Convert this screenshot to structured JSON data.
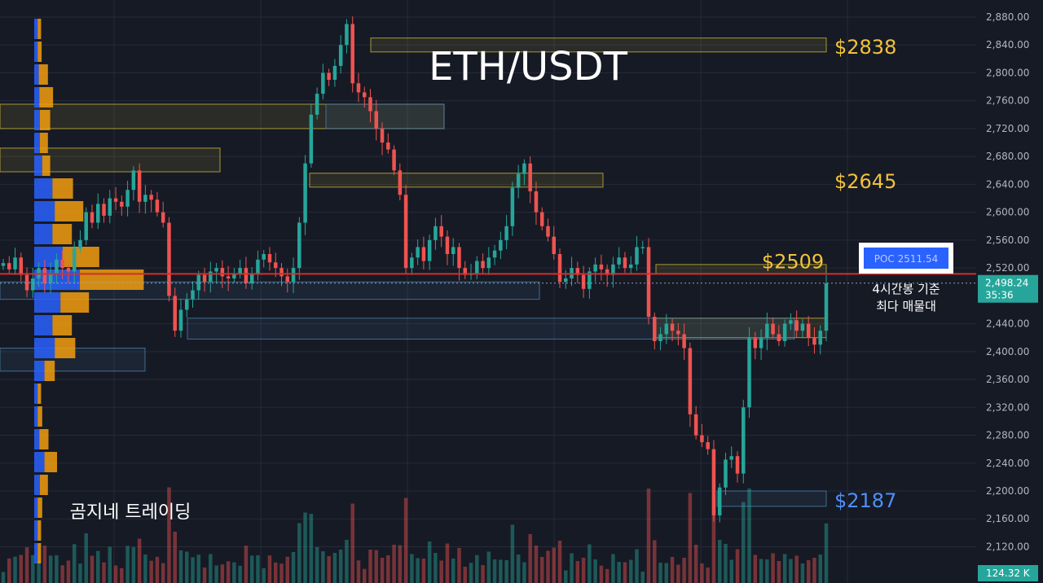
{
  "chart_data": {
    "type": "candlestick",
    "title": "ETH/USDT",
    "watermark": "곰지네 트레이딩",
    "ylim": [
      2090,
      2895
    ],
    "y_ticks": [
      "2,880.00",
      "2,840.00",
      "2,800.00",
      "2,760.00",
      "2,720.00",
      "2,680.00",
      "2,640.00",
      "2,600.00",
      "2,560.00",
      "2,520.00",
      "2,440.00",
      "2,400.00",
      "2,360.00",
      "2,320.00",
      "2,280.00",
      "2,240.00",
      "2,200.00",
      "2,160.00",
      "2,120.00"
    ],
    "y_tick_values": [
      2880,
      2840,
      2800,
      2760,
      2720,
      2680,
      2640,
      2600,
      2560,
      2520,
      2440,
      2400,
      2360,
      2320,
      2280,
      2240,
      2200,
      2160,
      2120
    ],
    "last_price": "2,498.24",
    "countdown": "35:36",
    "volume_label": "124.32 K",
    "level_labels": [
      {
        "text": "$2838",
        "value": 2838,
        "color": "#f2c23a"
      },
      {
        "text": "$2645",
        "value": 2645,
        "color": "#f2c23a"
      },
      {
        "text": "$2509",
        "value": 2509,
        "color": "#f2c23a"
      },
      {
        "text": "$2187",
        "value": 2187,
        "color": "#4f8ff7"
      }
    ],
    "poc": {
      "label": "POC  2511.54",
      "value": 2511.54,
      "note_line1": "4시간봉 기준",
      "note_line2": "최다 매물대"
    },
    "colors": {
      "up": "#26a69a",
      "down": "#ef5350",
      "background": "#161a25",
      "grid": "#262b38",
      "poc": "#d32f2f",
      "profile_buy": "#2962ff",
      "profile_sell": "#f29d0f",
      "zone_yellow": "#c9b437",
      "zone_blue": "#4a7fa8"
    },
    "candles_close": [
      2527,
      2518,
      2535,
      2510,
      2488,
      2505,
      2520,
      2498,
      2512,
      2532,
      2520,
      2515,
      2548,
      2560,
      2600,
      2585,
      2612,
      2595,
      2620,
      2615,
      2608,
      2632,
      2660,
      2615,
      2625,
      2618,
      2600,
      2585,
      2480,
      2430,
      2460,
      2475,
      2488,
      2510,
      2500,
      2515,
      2520,
      2508,
      2505,
      2512,
      2520,
      2498,
      2512,
      2532,
      2540,
      2528,
      2520,
      2508,
      2500,
      2520,
      2585,
      2670,
      2740,
      2770,
      2800,
      2790,
      2810,
      2840,
      2870,
      2785,
      2772,
      2765,
      2745,
      2720,
      2700,
      2690,
      2660,
      2625,
      2520,
      2535,
      2550,
      2530,
      2560,
      2580,
      2565,
      2540,
      2550,
      2520,
      2510,
      2512,
      2530,
      2520,
      2535,
      2545,
      2560,
      2580,
      2635,
      2655,
      2670,
      2630,
      2600,
      2580,
      2565,
      2540,
      2500,
      2505,
      2520,
      2510,
      2490,
      2515,
      2525,
      2518,
      2510,
      2525,
      2535,
      2520,
      2525,
      2550,
      2550,
      2450,
      2415,
      2425,
      2440,
      2430,
      2425,
      2405,
      2310,
      2280,
      2270,
      2260,
      2165,
      2205,
      2245,
      2250,
      2225,
      2320,
      2420,
      2405,
      2420,
      2440,
      2425,
      2415,
      2440,
      2445,
      2430,
      2440,
      2420,
      2410,
      2430,
      2498
    ],
    "volume_profile": [
      {
        "buy": 0.3,
        "sell": 0.3
      },
      {
        "buy": 0.3,
        "sell": 0.35
      },
      {
        "buy": 0.4,
        "sell": 0.8
      },
      {
        "buy": 0.45,
        "sell": 1.2
      },
      {
        "buy": 0.5,
        "sell": 0.9
      },
      {
        "buy": 0.5,
        "sell": 0.7
      },
      {
        "buy": 0.7,
        "sell": 0.7
      },
      {
        "buy": 1.6,
        "sell": 1.8
      },
      {
        "buy": 1.8,
        "sell": 2.5
      },
      {
        "buy": 1.6,
        "sell": 1.7
      },
      {
        "buy": 2.5,
        "sell": 3.2
      },
      {
        "buy": 4.0,
        "sell": 5.6
      },
      {
        "buy": 2.3,
        "sell": 2.5
      },
      {
        "buy": 1.6,
        "sell": 1.7
      },
      {
        "buy": 1.8,
        "sell": 1.8
      },
      {
        "buy": 0.9,
        "sell": 0.9
      },
      {
        "buy": 0.3,
        "sell": 0.3
      },
      {
        "buy": 0.3,
        "sell": 0.4
      },
      {
        "buy": 0.45,
        "sell": 0.8
      },
      {
        "buy": 0.9,
        "sell": 1.1
      },
      {
        "buy": 0.5,
        "sell": 0.7
      },
      {
        "buy": 0.3,
        "sell": 0.4
      },
      {
        "buy": 0.3,
        "sell": 0.3
      },
      {
        "buy": 0.3,
        "sell": 0.3
      }
    ]
  }
}
